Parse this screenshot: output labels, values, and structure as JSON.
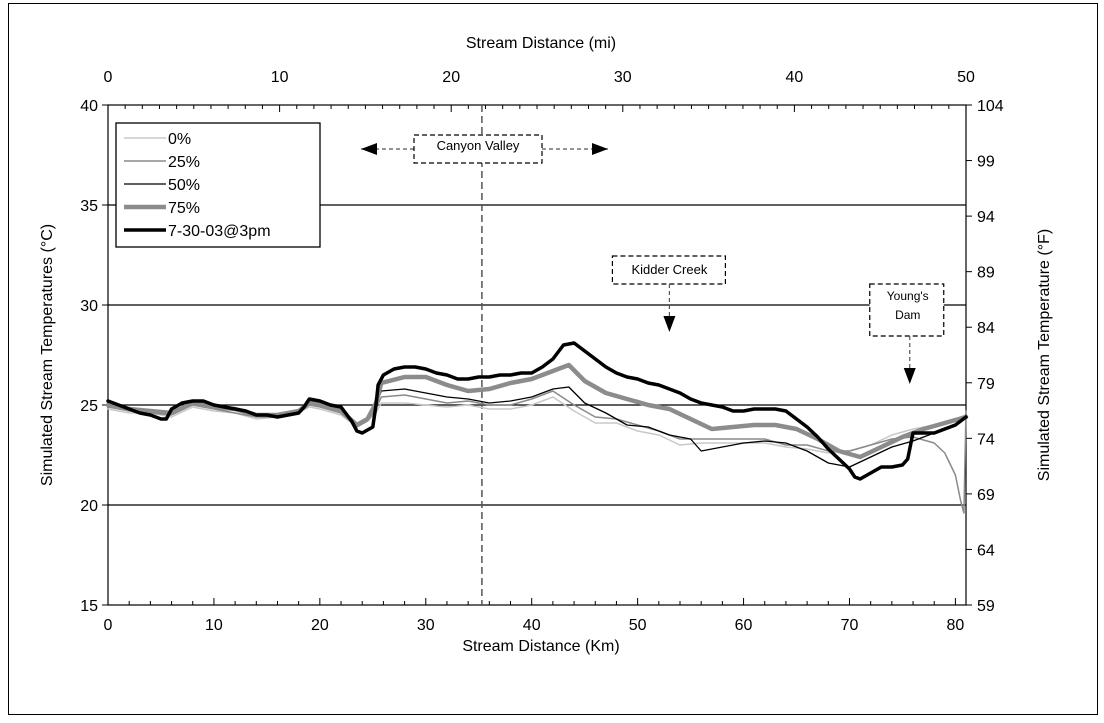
{
  "chart_data": {
    "type": "line",
    "xlabel": "Stream Distance (Km)",
    "x2label": "Stream Distance (mi)",
    "ylabel": "Simulated Stream Temperatures (°C)",
    "y2label": "Simulated Stream Temperature (°F)",
    "xlim": [
      0,
      81
    ],
    "ylim": [
      15,
      40
    ],
    "x2lim": [
      0,
      50
    ],
    "y2lim": [
      59,
      104
    ],
    "x_ticks": [
      "0",
      "10",
      "20",
      "30",
      "40",
      "50",
      "60",
      "70",
      "80"
    ],
    "y_ticks": [
      "15",
      "20",
      "25",
      "30",
      "35",
      "40"
    ],
    "x2_ticks": [
      "0",
      "10",
      "20",
      "30",
      "40",
      "50"
    ],
    "y2_ticks": [
      "59",
      "64",
      "69",
      "74",
      "79",
      "84",
      "89",
      "94",
      "99",
      "104"
    ],
    "grid": "horizontal",
    "legend_position": "top-left",
    "series": [
      {
        "name": "0%",
        "color": "#c8c8c8",
        "width": 1.5,
        "x": [
          0,
          2,
          4,
          6,
          8,
          10,
          12,
          14,
          16,
          18,
          19,
          20,
          22,
          23.5,
          24.5,
          25.3,
          25.8,
          28,
          30,
          32,
          34,
          36,
          38,
          40,
          42,
          44,
          46,
          48,
          50,
          52,
          54,
          56,
          58,
          60,
          62,
          64,
          66,
          68,
          70,
          72,
          74,
          76,
          78,
          79,
          80,
          80.5,
          81
        ],
        "y": [
          24.8,
          24.6,
          24.6,
          24.4,
          24.9,
          24.7,
          24.6,
          24.3,
          24.4,
          24.6,
          24.9,
          24.8,
          24.5,
          23.9,
          24.2,
          24.6,
          25.1,
          25.1,
          25.0,
          24.9,
          25.0,
          24.8,
          24.8,
          25.0,
          25.4,
          24.7,
          24.1,
          24.1,
          23.7,
          23.5,
          23.0,
          23.1,
          23.1,
          23.1,
          23.1,
          22.9,
          22.8,
          22.6,
          22.7,
          23.0,
          23.5,
          23.8,
          24.0,
          24.1,
          24.2,
          24.4,
          24.5
        ]
      },
      {
        "name": "25%",
        "color": "#8a8a8a",
        "width": 1.5,
        "x": [
          0,
          2,
          4,
          6,
          8,
          10,
          12,
          14,
          16,
          18,
          19,
          20,
          22,
          23.5,
          24.5,
          25.3,
          25.8,
          28,
          30,
          32,
          34,
          36,
          38,
          40,
          42,
          44,
          46,
          48,
          50,
          52,
          54,
          56,
          58,
          60,
          62,
          64,
          66,
          68,
          70,
          72,
          74,
          76,
          78,
          79,
          80,
          80.5,
          80.8,
          81
        ],
        "y": [
          24.9,
          24.7,
          24.6,
          24.5,
          25.0,
          24.8,
          24.6,
          24.4,
          24.4,
          24.6,
          25.0,
          24.9,
          24.6,
          23.9,
          24.2,
          24.8,
          25.4,
          25.5,
          25.3,
          25.1,
          25.2,
          25.0,
          25.0,
          25.3,
          25.7,
          25.0,
          24.4,
          24.3,
          24.0,
          23.7,
          23.3,
          23.3,
          23.3,
          23.3,
          23.3,
          23.0,
          23.0,
          22.7,
          22.7,
          23.0,
          23.3,
          23.4,
          23.1,
          22.6,
          21.5,
          20.2,
          19.6,
          24.7
        ]
      },
      {
        "name": "50%",
        "color": "#000000",
        "width": 1.3,
        "x": [
          0,
          2,
          4,
          6,
          8,
          10,
          12,
          14,
          16,
          18,
          19,
          20,
          22,
          23.5,
          24.5,
          25.3,
          25.8,
          28,
          30,
          32,
          34,
          36,
          38,
          40,
          42,
          43.5,
          45,
          47,
          49,
          51,
          53,
          55,
          56,
          58,
          60,
          62,
          64,
          66,
          68,
          70,
          72,
          74,
          76,
          78,
          80,
          81
        ],
        "y": [
          25.0,
          24.8,
          24.7,
          24.6,
          25.1,
          24.9,
          24.8,
          24.5,
          24.5,
          24.7,
          25.1,
          25.0,
          24.7,
          24.0,
          24.3,
          25.0,
          25.7,
          25.8,
          25.6,
          25.4,
          25.3,
          25.1,
          25.2,
          25.4,
          25.8,
          25.9,
          25.1,
          24.6,
          24.0,
          23.9,
          23.5,
          23.3,
          22.7,
          22.9,
          23.1,
          23.2,
          23.1,
          22.7,
          22.1,
          21.9,
          22.4,
          22.9,
          23.2,
          23.6,
          24.0,
          24.5
        ]
      },
      {
        "name": "75%",
        "color": "#8c8c8c",
        "width": 4.5,
        "x": [
          0,
          2,
          4,
          6,
          8,
          10,
          12,
          14,
          16,
          18,
          19,
          20,
          22,
          23.5,
          24.5,
          25.3,
          25.8,
          28,
          30,
          32,
          34,
          36,
          38,
          40,
          42,
          43.5,
          45,
          47,
          49,
          51,
          53,
          55,
          57,
          59,
          61,
          63,
          65,
          67,
          69,
          71,
          73,
          75,
          77,
          79,
          81
        ],
        "y": [
          25.0,
          24.8,
          24.7,
          24.6,
          25.1,
          24.9,
          24.8,
          24.5,
          24.5,
          24.7,
          25.1,
          25.0,
          24.7,
          24.0,
          24.3,
          25.1,
          26.1,
          26.4,
          26.4,
          26.0,
          25.7,
          25.8,
          26.1,
          26.3,
          26.7,
          27.0,
          26.2,
          25.6,
          25.3,
          25.0,
          24.8,
          24.3,
          23.8,
          23.9,
          24.0,
          24.0,
          23.8,
          23.3,
          22.7,
          22.4,
          22.9,
          23.4,
          23.8,
          24.1,
          24.4
        ]
      },
      {
        "name": "7-30-03@3pm",
        "color": "#000000",
        "width": 3.5,
        "x": [
          0,
          1,
          2,
          3,
          4,
          5,
          5.5,
          6,
          7,
          8,
          9,
          10,
          11,
          12,
          13,
          14,
          15,
          16,
          17,
          18,
          18.5,
          19,
          20,
          21,
          22,
          23,
          23.5,
          24,
          25,
          25.3,
          25.5,
          26,
          27,
          28,
          29,
          30,
          31,
          32,
          33,
          34,
          35,
          36,
          37,
          38,
          39,
          40,
          41,
          42,
          43,
          44,
          45,
          46,
          47,
          48,
          49,
          50,
          51,
          52,
          53,
          54,
          55,
          56,
          57,
          58,
          59,
          60,
          61,
          62,
          63,
          64,
          65,
          66,
          67,
          68,
          69,
          70,
          70.5,
          71,
          72,
          73,
          74,
          75,
          75.5,
          76,
          77,
          78,
          79,
          80,
          81
        ],
        "y": [
          25.2,
          25.0,
          24.8,
          24.6,
          24.5,
          24.3,
          24.3,
          24.8,
          25.1,
          25.2,
          25.2,
          25.0,
          24.9,
          24.8,
          24.7,
          24.5,
          24.5,
          24.4,
          24.5,
          24.6,
          24.9,
          25.3,
          25.2,
          25.0,
          24.9,
          24.2,
          23.7,
          23.6,
          23.9,
          25.0,
          26.0,
          26.5,
          26.8,
          26.9,
          26.9,
          26.8,
          26.6,
          26.5,
          26.3,
          26.3,
          26.4,
          26.4,
          26.5,
          26.5,
          26.6,
          26.6,
          26.9,
          27.3,
          28.0,
          28.1,
          27.7,
          27.3,
          26.9,
          26.6,
          26.4,
          26.3,
          26.1,
          26.0,
          25.8,
          25.6,
          25.3,
          25.1,
          25.0,
          24.9,
          24.7,
          24.7,
          24.8,
          24.8,
          24.8,
          24.7,
          24.3,
          23.9,
          23.4,
          22.8,
          22.3,
          21.8,
          21.4,
          21.3,
          21.6,
          21.9,
          21.9,
          22.0,
          22.3,
          23.6,
          23.6,
          23.6,
          23.8,
          24.0,
          24.4
        ]
      }
    ],
    "annotations": [
      {
        "label": "Canyon  Valley",
        "x": 35.3,
        "arrows": "left-right"
      },
      {
        "label": "Kidder Creek",
        "x": 53,
        "arrows": "down"
      },
      {
        "label": "Young's Dam",
        "lines": [
          "Young's",
          "Dam"
        ],
        "x": 75.5,
        "arrows": "down"
      }
    ],
    "reference_line_x": 35.3
  }
}
